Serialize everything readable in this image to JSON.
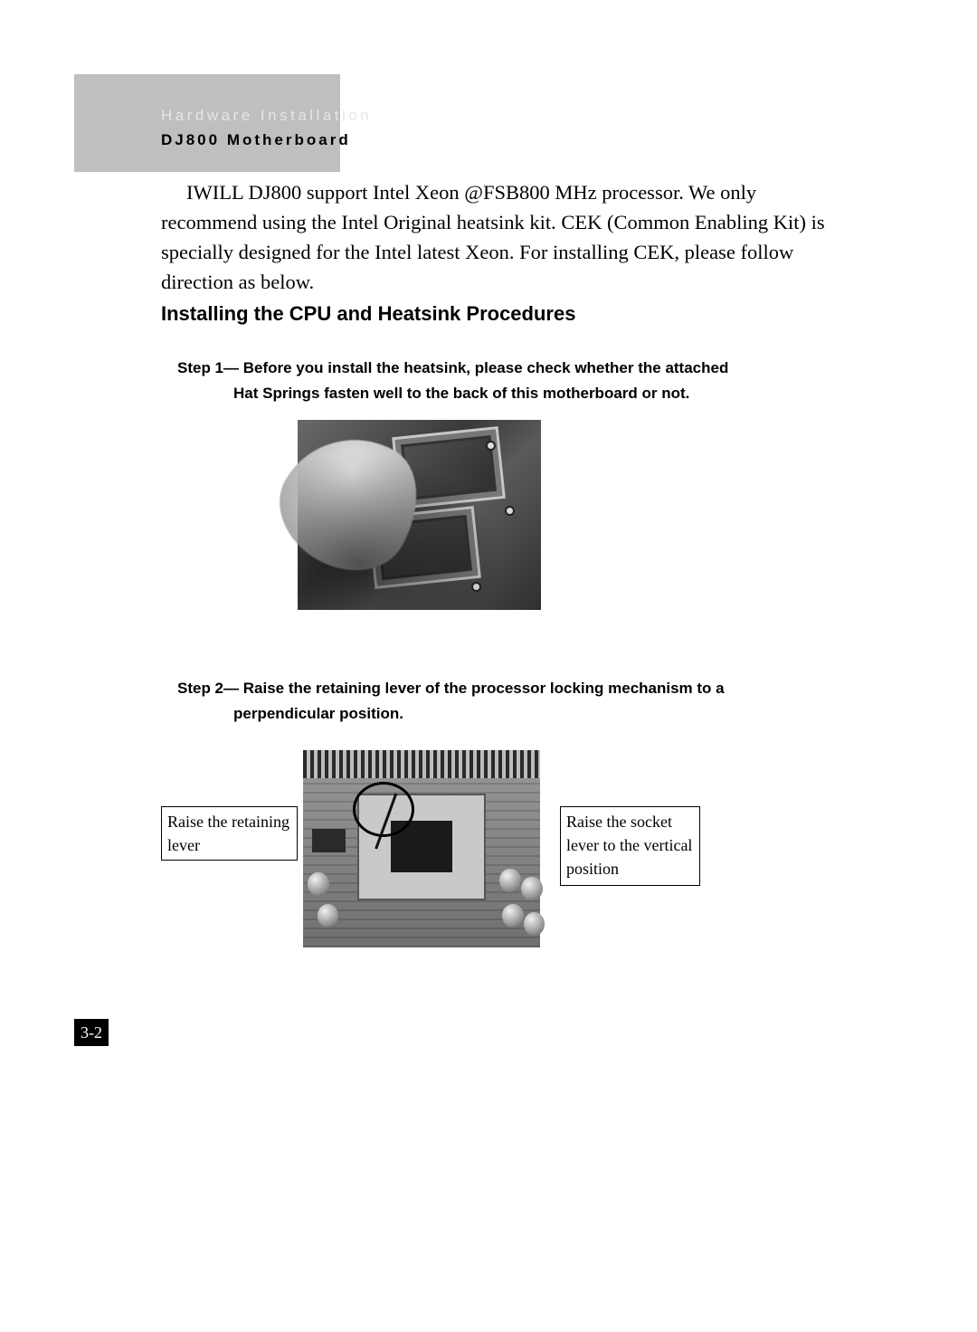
{
  "header": {
    "line1": "Hardware Installation",
    "line2": "DJ800 Motherboard"
  },
  "intro_text": "IWILL DJ800 support Intel Xeon @FSB800 MHz processor. We only recommend using the Intel Original heatsink kit. CEK (Common Enabling Kit) is specially designed for the Intel latest Xeon. For installing CEK, please follow direction as below.",
  "section_title": "Installing the CPU and Heatsink Procedures",
  "steps": {
    "step1": {
      "lead": "Step 1— Before you install the heatsink, please check whether the attached",
      "cont": "Hat Springs fasten well to the back of this motherboard or not."
    },
    "step2": {
      "lead": "Step 2— Raise the retaining lever of the processor locking mechanism to a",
      "cont": "perpendicular position."
    }
  },
  "callouts": {
    "left": "Raise the retaining lever",
    "right": "Raise the socket lever to the vertical position"
  },
  "page_number": "3-2",
  "figures": {
    "fig1": {
      "alt": "Hand checking Hat Springs on motherboard CPU sockets",
      "grayscale": true
    },
    "fig2": {
      "alt": "CPU socket with retaining lever circled",
      "grayscale": true
    }
  },
  "style": {
    "page_bg": "#ffffff",
    "header_bg": "#bfbfbf",
    "header_line1_color": "#e6e6e6",
    "header_line2_color": "#000000",
    "body_font": "Times New Roman",
    "heading_font": "Arial",
    "body_fontsize_pt": 17,
    "heading_fontsize_pt": 17,
    "section_title_fontsize_pt": 17,
    "pagenum_bg": "#000000",
    "pagenum_fg": "#ffffff",
    "callout_border": "#000000"
  }
}
